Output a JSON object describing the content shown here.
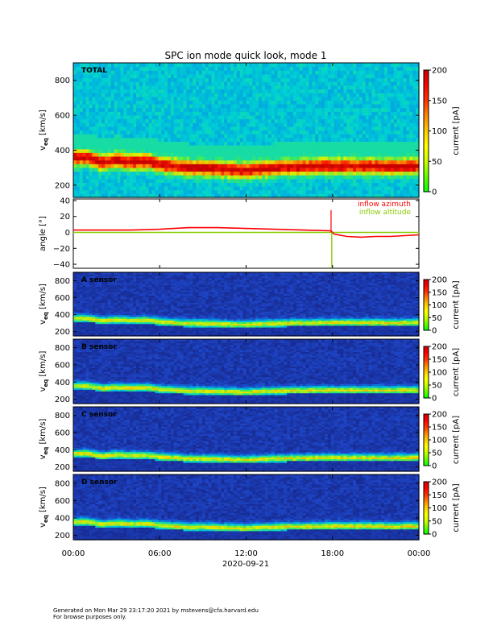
{
  "title": "SPC ion mode quick look, mode 1",
  "colors": {
    "colorbar": [
      "#00ff00",
      "#66ff00",
      "#ccff00",
      "#ffff00",
      "#ffcc00",
      "#ff8800",
      "#ff3300",
      "#ff0000",
      "#cc0000"
    ],
    "azimuth": "#ff0000",
    "altitude": "#88cc00",
    "background_low": "#1a2a8c"
  },
  "chart_data": [
    {
      "type": "heatmap",
      "panel_label": "TOTAL",
      "ylabel_main": "v",
      "ylabel_sub": "eq",
      "ylabel_unit": " [km/s]",
      "yticks": [
        "200",
        "400",
        "600",
        "800"
      ],
      "ytick_values": [
        200,
        400,
        600,
        800
      ],
      "ylim": [
        130,
        900
      ],
      "colorbar_label": "current [pA]",
      "colorbar_ticks": [
        "0",
        "50",
        "100",
        "150",
        "200"
      ],
      "colorbar_tick_values": [
        0,
        50,
        100,
        150,
        200
      ],
      "colorbar_range": [
        0,
        200
      ],
      "peak_velocity_hours": [
        0,
        1,
        2,
        3,
        4,
        5,
        6,
        7,
        8,
        9,
        10,
        11,
        12,
        13,
        14,
        15,
        16,
        17,
        18,
        19,
        20,
        21,
        22,
        23,
        24
      ],
      "peak_velocity_kms": [
        360,
        360,
        330,
        345,
        335,
        340,
        320,
        310,
        300,
        300,
        295,
        290,
        285,
        295,
        300,
        305,
        305,
        310,
        310,
        310,
        310,
        310,
        305,
        310,
        310
      ]
    },
    {
      "type": "line",
      "ylabel": "angle [°]",
      "yticks": [
        "−40",
        "−20",
        "0",
        "20",
        "40"
      ],
      "ytick_values": [
        -40,
        -20,
        0,
        20,
        40
      ],
      "ylim": [
        -45,
        42
      ],
      "series": [
        {
          "name": "inflow azimuth",
          "x": [
            0,
            2,
            4,
            6,
            8,
            10,
            12,
            14,
            16,
            17.9,
            18.1,
            19,
            20,
            21,
            22,
            23,
            24
          ],
          "values": [
            3,
            3,
            3,
            4,
            6,
            6,
            5,
            4,
            3,
            2,
            -2,
            -5,
            -6,
            -5,
            -5,
            -4,
            -3
          ]
        },
        {
          "name": "inflow altitude",
          "x": [
            0,
            6,
            12,
            17.9,
            18.1,
            24
          ],
          "values": [
            0,
            0,
            0,
            0,
            0,
            0
          ]
        }
      ]
    },
    {
      "type": "heatmap",
      "panel_label": "A sensor",
      "ylabel_main": "v",
      "ylabel_sub": "eq",
      "ylabel_unit": " [km/s]",
      "yticks": [
        "200",
        "400",
        "600",
        "800"
      ],
      "ytick_values": [
        200,
        400,
        600,
        800
      ],
      "ylim": [
        150,
        900
      ],
      "colorbar_label": "current [pA]",
      "colorbar_ticks": [
        "0",
        "50",
        "100",
        "150",
        "200"
      ],
      "colorbar_tick_values": [
        0,
        50,
        100,
        150,
        200
      ],
      "colorbar_range": [
        0,
        200
      ]
    },
    {
      "type": "heatmap",
      "panel_label": "B sensor",
      "ylabel_main": "v",
      "ylabel_sub": "eq",
      "ylabel_unit": " [km/s]",
      "yticks": [
        "200",
        "400",
        "600",
        "800"
      ],
      "ytick_values": [
        200,
        400,
        600,
        800
      ],
      "ylim": [
        150,
        900
      ],
      "colorbar_label": "current [pA]",
      "colorbar_ticks": [
        "0",
        "50",
        "100",
        "150",
        "200"
      ],
      "colorbar_tick_values": [
        0,
        50,
        100,
        150,
        200
      ],
      "colorbar_range": [
        0,
        200
      ]
    },
    {
      "type": "heatmap",
      "panel_label": "C sensor",
      "ylabel_main": "v",
      "ylabel_sub": "eq",
      "ylabel_unit": " [km/s]",
      "yticks": [
        "200",
        "400",
        "600",
        "800"
      ],
      "ytick_values": [
        200,
        400,
        600,
        800
      ],
      "ylim": [
        150,
        900
      ],
      "colorbar_label": "current [pA]",
      "colorbar_ticks": [
        "0",
        "50",
        "100",
        "150",
        "200"
      ],
      "colorbar_tick_values": [
        0,
        50,
        100,
        150,
        200
      ],
      "colorbar_range": [
        0,
        200
      ]
    },
    {
      "type": "heatmap",
      "panel_label": "D sensor",
      "ylabel_main": "v",
      "ylabel_sub": "eq",
      "ylabel_unit": " [km/s]",
      "yticks": [
        "200",
        "400",
        "600",
        "800"
      ],
      "ytick_values": [
        200,
        400,
        600,
        800
      ],
      "ylim": [
        150,
        900
      ],
      "colorbar_label": "current [pA]",
      "colorbar_ticks": [
        "0",
        "50",
        "100",
        "150",
        "200"
      ],
      "colorbar_tick_values": [
        0,
        50,
        100,
        150,
        200
      ],
      "colorbar_range": [
        0,
        200
      ]
    }
  ],
  "x_axis": {
    "tick_labels": [
      "00:00",
      "06:00",
      "12:00",
      "18:00",
      "00:00"
    ],
    "tick_hours": [
      0,
      6,
      12,
      18,
      24
    ],
    "date_label": "2020-09-21",
    "xlim_hours": [
      0,
      24
    ]
  },
  "legend": {
    "azimuth": "inflow azimuth",
    "altitude": "inflow altitude"
  },
  "footer": {
    "line1": "Generated on Mon Mar 29 23:17:20 2021 by mstevens@cfa.harvard.edu",
    "line2": "For browse purposes only."
  }
}
